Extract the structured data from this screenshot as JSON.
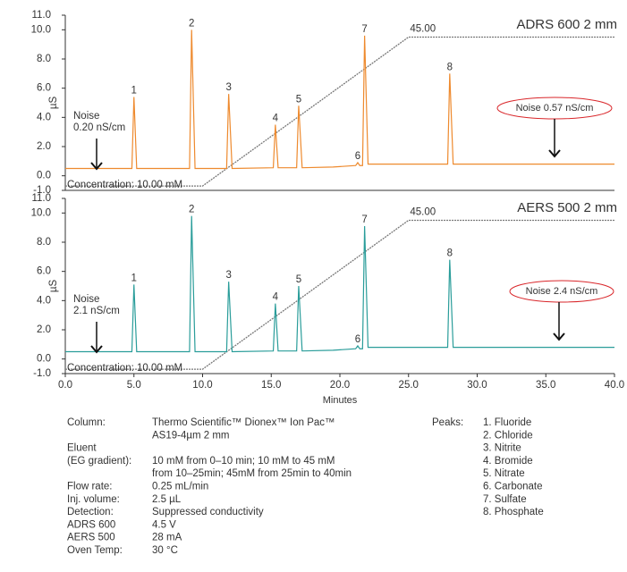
{
  "chart_data": [
    {
      "type": "line",
      "title": "ADRS 600 2 mm",
      "y_label": "µS",
      "xlim": [
        0,
        40
      ],
      "ylim": [
        -1,
        11
      ],
      "yticks": [
        {
          "value": 11,
          "label": "11.0"
        },
        {
          "value": 10,
          "label": "10.0"
        },
        {
          "value": 8,
          "label": "8.0"
        },
        {
          "value": 6,
          "label": "6.0"
        },
        {
          "value": 4,
          "label": "4.0"
        },
        {
          "value": 2,
          "label": "2.0"
        },
        {
          "value": 0,
          "label": "0.0"
        },
        {
          "value": -1,
          "label": "-1.0"
        }
      ],
      "x": [
        0,
        4.85,
        5.0,
        5.2,
        9.05,
        9.2,
        9.45,
        11.75,
        11.9,
        12.15,
        15.15,
        15.3,
        15.5,
        16.85,
        17.0,
        17.25,
        19.5,
        21.15,
        21.3,
        21.45,
        21.65,
        21.8,
        22.05,
        27.85,
        28.0,
        28.25,
        40
      ],
      "series": [
        {
          "color": "#ee8a2e",
          "values": [
            0.5,
            0.5,
            5.4,
            0.5,
            0.5,
            10.0,
            0.5,
            0.5,
            5.6,
            0.5,
            0.55,
            3.5,
            0.55,
            0.55,
            4.8,
            0.55,
            0.6,
            0.7,
            0.9,
            0.7,
            0.7,
            9.6,
            0.8,
            0.8,
            7.0,
            0.8,
            0.8
          ]
        }
      ],
      "peak_labels": [
        "1",
        "2",
        "3",
        "4",
        "5",
        "6",
        "7",
        "8"
      ],
      "gradient": {
        "x": [
          0,
          10,
          25,
          40
        ],
        "values": [
          -0.7,
          -0.7,
          9.5,
          9.5
        ],
        "color": "#777777",
        "label": "45.00"
      },
      "concentration_label": "Concentration: 10.00 mM",
      "noise_left": [
        "Noise",
        "0.20 nS/cm"
      ],
      "noise_right": "Noise 0.57  nS/cm"
    },
    {
      "type": "line",
      "title": "AERS 500 2 mm",
      "y_label": "µS",
      "x_label": "Minutes",
      "xlim": [
        0,
        40
      ],
      "ylim": [
        -1,
        11
      ],
      "xticks": [
        {
          "value": 0,
          "label": "0.0"
        },
        {
          "value": 5,
          "label": "5.0"
        },
        {
          "value": 10,
          "label": "10.0"
        },
        {
          "value": 15,
          "label": "15.0"
        },
        {
          "value": 20,
          "label": "20.0"
        },
        {
          "value": 25,
          "label": "25.0"
        },
        {
          "value": 30,
          "label": "30.0"
        },
        {
          "value": 35,
          "label": "35.0"
        },
        {
          "value": 40,
          "label": "40.0"
        }
      ],
      "yticks": [
        {
          "value": 11,
          "label": "11.0"
        },
        {
          "value": 10,
          "label": "10.0"
        },
        {
          "value": 8,
          "label": "8.0"
        },
        {
          "value": 6,
          "label": "6.0"
        },
        {
          "value": 4,
          "label": "4.0"
        },
        {
          "value": 2,
          "label": "2.0"
        },
        {
          "value": 0,
          "label": "0.0"
        },
        {
          "value": -1,
          "label": "-1.0"
        }
      ],
      "x": [
        0,
        4.85,
        5.0,
        5.2,
        9.05,
        9.2,
        9.45,
        11.75,
        11.9,
        12.15,
        15.15,
        15.3,
        15.5,
        16.85,
        17.0,
        17.25,
        19.5,
        21.15,
        21.3,
        21.45,
        21.65,
        21.8,
        22.05,
        27.85,
        28.0,
        28.25,
        40
      ],
      "series": [
        {
          "color": "#2a9d9a",
          "values": [
            0.5,
            0.5,
            5.1,
            0.5,
            0.5,
            9.8,
            0.5,
            0.5,
            5.3,
            0.5,
            0.55,
            3.8,
            0.55,
            0.55,
            5.0,
            0.55,
            0.6,
            0.7,
            0.9,
            0.7,
            0.7,
            9.1,
            0.8,
            0.8,
            6.8,
            0.8,
            0.8
          ]
        }
      ],
      "peak_labels": [
        "1",
        "2",
        "3",
        "4",
        "5",
        "6",
        "7",
        "8"
      ],
      "gradient": {
        "x": [
          0,
          10,
          25,
          40
        ],
        "values": [
          -0.7,
          -0.7,
          9.5,
          9.5
        ],
        "color": "#777777",
        "label": "45.00"
      },
      "concentration_label": "Concentration: 10.00 mM",
      "noise_left": [
        "Noise",
        "2.1 nS/cm"
      ],
      "noise_right": "Noise 2.4  nS/cm"
    }
  ],
  "conditions": [
    {
      "label": [
        "Column:"
      ],
      "value": [
        "Thermo Scientific™ Dionex™ Ion Pac™",
        "AS19-4µm 2 mm"
      ]
    },
    {
      "label": [
        "Eluent",
        "(EG gradient):"
      ],
      "value": [
        "10 mM from 0–10 min; 10 mM to 45 mM",
        "from 10–25min; 45mM from 25min to 40min"
      ]
    },
    {
      "label": [
        "Flow rate:"
      ],
      "value": [
        "0.25 mL/min"
      ]
    },
    {
      "label": [
        "Inj. volume:"
      ],
      "value": [
        "2.5 µL"
      ]
    },
    {
      "label": [
        "Detection:"
      ],
      "value": [
        "Suppressed conductivity"
      ]
    },
    {
      "label": [
        "ADRS 600"
      ],
      "value": [
        "4.5 V"
      ]
    },
    {
      "label": [
        "AERS 500"
      ],
      "value": [
        "28 mA"
      ]
    },
    {
      "label": [
        "Oven Temp:"
      ],
      "value": [
        "30 °C"
      ]
    }
  ],
  "peaks": {
    "heading": "Peaks:",
    "items": [
      "1. Fluoride",
      "2. Chloride",
      "3. Nitrite",
      "4. Bromide",
      "5. Nitrate",
      "6. Carbonate",
      "7. Sulfate",
      "8. Phosphate"
    ]
  }
}
